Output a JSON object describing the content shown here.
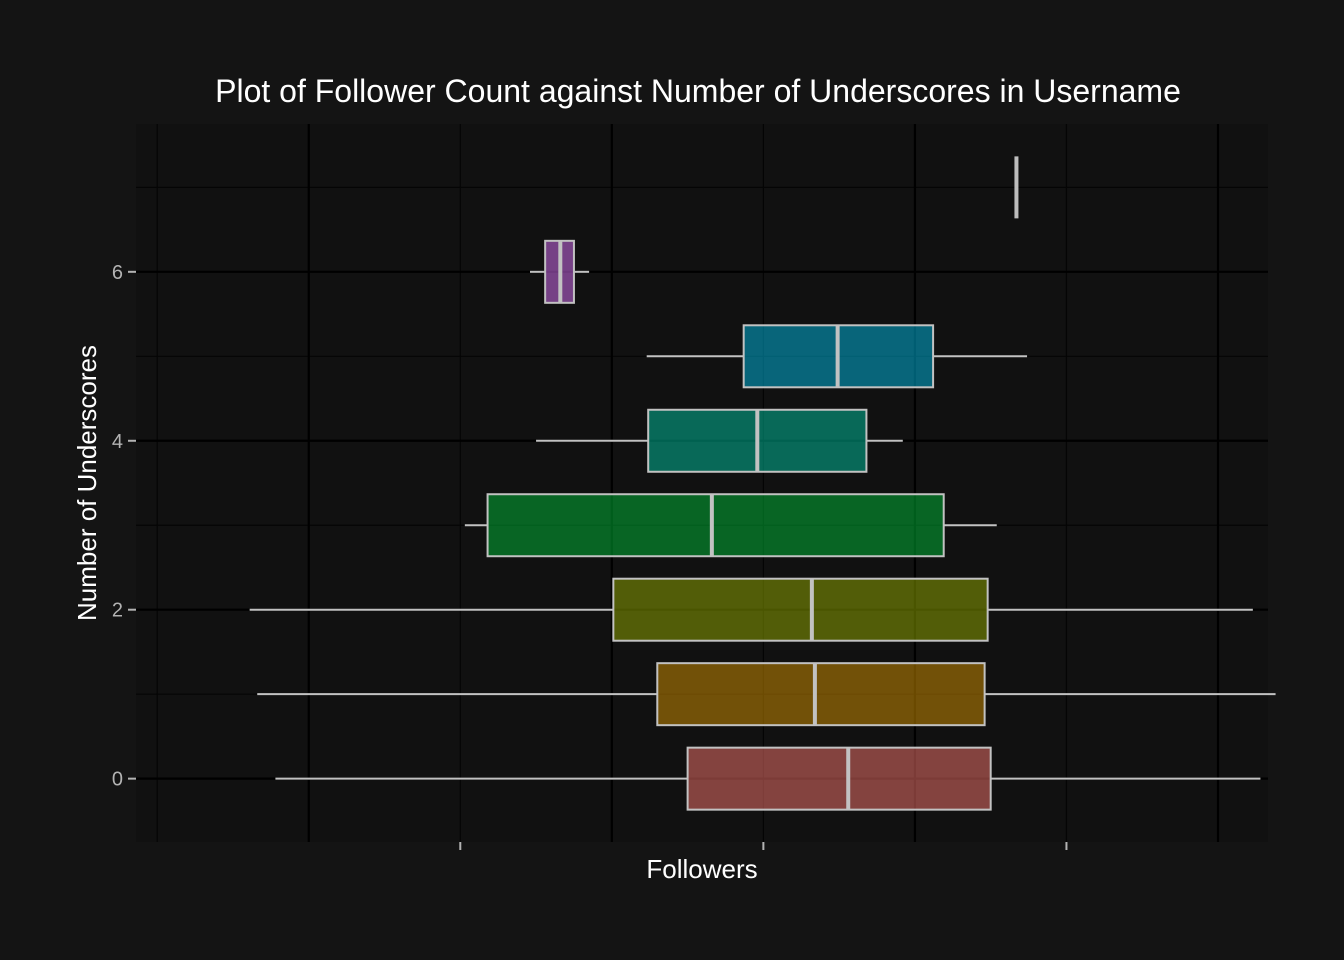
{
  "chart_data": {
    "type": "boxplot",
    "orientation": "horizontal",
    "title": "Plot of Follower Count against Number of Underscores in Username",
    "xlabel": "Followers",
    "ylabel": "Number of Underscores",
    "x_tick_labels_shown": false,
    "xlim": [
      -4.14,
      3.33
    ],
    "ylim": [
      -0.75,
      7.75
    ],
    "y_ticks": [
      0,
      2,
      4,
      6
    ],
    "y_tick_labels": [
      "0",
      "2",
      "4",
      "6"
    ],
    "grid": true,
    "legend": "none",
    "boxes": [
      {
        "underscores": 0,
        "whisker_low": -3.22,
        "q1": -0.5,
        "median": 0.56,
        "q3": 1.5,
        "whisker_high": 3.28,
        "color": "#F8766D"
      },
      {
        "underscores": 1,
        "whisker_low": -3.34,
        "q1": -0.7,
        "median": 0.34,
        "q3": 1.46,
        "whisker_high": 3.38,
        "color": "#D39200"
      },
      {
        "underscores": 2,
        "whisker_low": -3.39,
        "q1": -0.99,
        "median": 0.32,
        "q3": 1.48,
        "whisker_high": 3.23,
        "color": "#93AA00"
      },
      {
        "underscores": 3,
        "whisker_low": -1.97,
        "q1": -1.82,
        "median": -0.34,
        "q3": 1.19,
        "whisker_high": 1.54,
        "color": "#00BA38"
      },
      {
        "underscores": 4,
        "whisker_low": -1.5,
        "q1": -0.76,
        "median": -0.04,
        "q3": 0.68,
        "whisker_high": 0.92,
        "color": "#00C19F"
      },
      {
        "underscores": 5,
        "whisker_low": -0.77,
        "q1": -0.13,
        "median": 0.49,
        "q3": 1.12,
        "whisker_high": 1.74,
        "color": "#00B9E3"
      },
      {
        "underscores": 6,
        "whisker_low": -1.54,
        "q1": -1.44,
        "median": -1.34,
        "q3": -1.25,
        "whisker_high": -1.15,
        "color": "#DB72FB"
      },
      {
        "underscores": 7,
        "whisker_low": 1.67,
        "q1": 1.67,
        "median": 1.67,
        "q3": 1.67,
        "whisker_high": 1.67,
        "color": "#FF61C3"
      }
    ]
  }
}
